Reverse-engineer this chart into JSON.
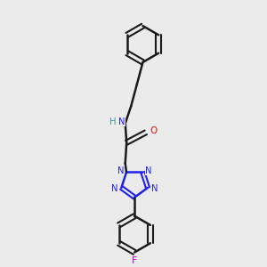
{
  "background_color": "#ebebeb",
  "bond_color": "#1a1a1a",
  "N_color": "#2020ee",
  "O_color": "#ee1010",
  "F_color": "#cc00cc",
  "H_color": "#4a9090",
  "figsize": [
    3.0,
    3.0
  ],
  "dpi": 100,
  "xlim": [
    0,
    10
  ],
  "ylim": [
    0,
    10
  ]
}
